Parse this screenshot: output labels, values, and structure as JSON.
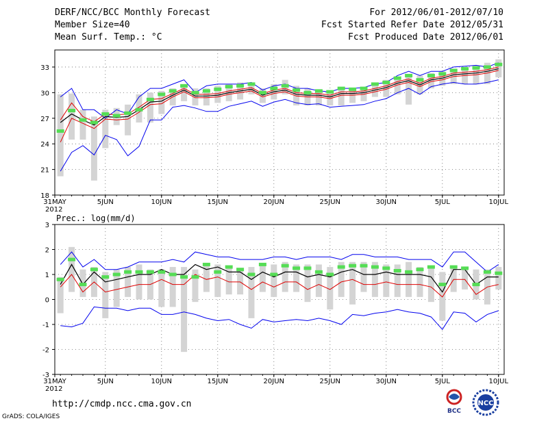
{
  "header": {
    "title": "DERF/NCC/BCC Monthly Forecast",
    "member_size": "Member Size=40",
    "variable": "Mean Surf. Temp.: °C",
    "period": "For 2012/06/01-2012/07/10",
    "start_date": "Fcst Started Refer Date 2012/05/31",
    "produced_date": "Fcst Produced Date 2012/06/01"
  },
  "footer": {
    "url": "http://cmdp.ncc.cma.gov.cn",
    "credit": "GrADS: COLA/IGES",
    "logo_left": "BCC",
    "logo_right": "NCC"
  },
  "colors": {
    "bounds": "#0000ee",
    "mean": "#000000",
    "secondary": "#dd0000",
    "bar": "#d4d4d4",
    "obs": "#55dd55"
  },
  "chart_data": [
    {
      "type": "line",
      "title": "Mean Surf. Temp.: °C",
      "unit": "°C",
      "x_labels": [
        "31MAY",
        "5JUN",
        "10JUN",
        "15JUN",
        "20JUN",
        "25JUN",
        "30JUN",
        "5JUL",
        "10JUL"
      ],
      "x_year": "2012",
      "yticks": [
        "18",
        "21",
        "24",
        "27",
        "30",
        "33"
      ],
      "ylim": [
        18,
        35
      ],
      "x": [
        1,
        2,
        3,
        4,
        5,
        6,
        7,
        8,
        9,
        10,
        11,
        12,
        13,
        14,
        15,
        16,
        17,
        18,
        19,
        20,
        21,
        22,
        23,
        24,
        25,
        26,
        27,
        28,
        29,
        30,
        31,
        32,
        33,
        34,
        35,
        36,
        37,
        38,
        39,
        40
      ],
      "series": [
        {
          "name": "max",
          "values": [
            29.5,
            30.5,
            28,
            28,
            27,
            28,
            27.5,
            29.5,
            30.5,
            30.5,
            31,
            31.5,
            30,
            30.8,
            31,
            31,
            31,
            31.2,
            30.3,
            30.8,
            31,
            30.5,
            30.5,
            30.2,
            30.1,
            30.5,
            30.5,
            30.6,
            31,
            31.2,
            32,
            32.5,
            32,
            32.5,
            32.5,
            33,
            33.1,
            33.2,
            33,
            33.5
          ]
        },
        {
          "name": "ens_upper",
          "values": [
            26.8,
            28.8,
            27.2,
            26.6,
            27.5,
            27.4,
            27.5,
            28.3,
            29.2,
            29.3,
            29.9,
            30.5,
            29.8,
            29.8,
            29.9,
            30.2,
            30.4,
            30.6,
            29.9,
            30.3,
            30.5,
            30.0,
            29.9,
            29.9,
            29.7,
            30.1,
            30.1,
            30.2,
            30.5,
            30.8,
            31.3,
            31.6,
            31.1,
            31.7,
            31.9,
            32.3,
            32.4,
            32.5,
            32.7,
            33.0
          ]
        },
        {
          "name": "ens_mean",
          "values": [
            26.5,
            27.5,
            26.8,
            26.2,
            27.2,
            27.1,
            27.2,
            28.0,
            28.9,
            29.0,
            29.7,
            30.3,
            29.6,
            29.6,
            29.7,
            30.0,
            30.2,
            30.4,
            29.7,
            30.1,
            30.3,
            29.8,
            29.7,
            29.7,
            29.5,
            29.9,
            29.9,
            30.0,
            30.3,
            30.6,
            31.1,
            31.4,
            30.9,
            31.5,
            31.7,
            32.1,
            32.2,
            32.3,
            32.5,
            32.8
          ]
        },
        {
          "name": "ens_lower",
          "values": [
            24.2,
            27.0,
            26.4,
            25.8,
            26.9,
            26.8,
            26.9,
            27.7,
            28.6,
            28.7,
            29.5,
            30.1,
            29.4,
            29.4,
            29.5,
            29.8,
            30.0,
            30.2,
            29.5,
            29.9,
            30.1,
            29.6,
            29.5,
            29.5,
            29.3,
            29.7,
            29.7,
            29.8,
            30.1,
            30.4,
            30.9,
            31.2,
            30.7,
            31.3,
            31.5,
            31.9,
            32.0,
            32.1,
            32.3,
            32.6
          ]
        },
        {
          "name": "min",
          "values": [
            20.8,
            23.0,
            23.8,
            22.7,
            25.0,
            24.5,
            22.6,
            23.7,
            26.8,
            26.8,
            28.3,
            28.5,
            28.2,
            27.8,
            27.8,
            28.4,
            28.7,
            29.0,
            28.4,
            28.9,
            29.2,
            28.8,
            28.6,
            28.7,
            28.3,
            28.4,
            28.5,
            28.6,
            29.0,
            29.3,
            30.0,
            30.5,
            29.8,
            30.7,
            31.0,
            31.2,
            31.0,
            31.0,
            31.2,
            31.5
          ]
        }
      ],
      "bars": [
        {
          "low": 20.2,
          "high": 29.8
        },
        {
          "low": 24.5,
          "high": 29.9
        },
        {
          "low": 24.5,
          "high": 28.0
        },
        {
          "low": 19.7,
          "high": 27.2
        },
        {
          "low": 23.5,
          "high": 28.0
        },
        {
          "low": 26.2,
          "high": 28.2
        },
        {
          "low": 25.0,
          "high": 28.6
        },
        {
          "low": 26.5,
          "high": 29.8
        },
        {
          "low": 26.5,
          "high": 30.0
        },
        {
          "low": 27.5,
          "high": 30.2
        },
        {
          "low": 28.5,
          "high": 30.5
        },
        {
          "low": 29.0,
          "high": 31.0
        },
        {
          "low": 28.5,
          "high": 30.5
        },
        {
          "low": 28.5,
          "high": 30.5
        },
        {
          "low": 28.8,
          "high": 30.8
        },
        {
          "low": 29.0,
          "high": 31.0
        },
        {
          "low": 29.2,
          "high": 31.2
        },
        {
          "low": 29.8,
          "high": 31.2
        },
        {
          "low": 28.8,
          "high": 30.5
        },
        {
          "low": 29.2,
          "high": 31.0
        },
        {
          "low": 29.8,
          "high": 31.5
        },
        {
          "low": 28.5,
          "high": 30.8
        },
        {
          "low": 28.5,
          "high": 30.5
        },
        {
          "low": 28.5,
          "high": 30.3
        },
        {
          "low": 28.5,
          "high": 30.2
        },
        {
          "low": 28.5,
          "high": 30.4
        },
        {
          "low": 28.8,
          "high": 30.5
        },
        {
          "low": 29.0,
          "high": 30.6
        },
        {
          "low": 29.5,
          "high": 31.0
        },
        {
          "low": 29.5,
          "high": 31.5
        },
        {
          "low": 29.8,
          "high": 31.8
        },
        {
          "low": 28.6,
          "high": 32.0
        },
        {
          "low": 29.8,
          "high": 32.0
        },
        {
          "low": 30.5,
          "high": 32.3
        },
        {
          "low": 30.8,
          "high": 32.5
        },
        {
          "low": 31.0,
          "high": 32.8
        },
        {
          "low": 31.0,
          "high": 33.0
        },
        {
          "low": 31.0,
          "high": 33.2
        },
        {
          "low": 31.0,
          "high": 33.5
        },
        {
          "low": 31.8,
          "high": 33.9
        }
      ],
      "markers": [
        25.5,
        27.9,
        26.8,
        26.5,
        27.5,
        27.3,
        27.6,
        28.0,
        29.2,
        29.8,
        30.2,
        30.8,
        30.0,
        30.2,
        30.4,
        30.7,
        30.8,
        31.0,
        30.0,
        30.5,
        30.8,
        30.3,
        30.0,
        30.2,
        30.1,
        30.5,
        30.4,
        30.5,
        31.0,
        31.2,
        31.7,
        32.0,
        31.5,
        32.0,
        32.2,
        32.6,
        32.8,
        32.9,
        33.0,
        33.3
      ]
    },
    {
      "type": "line",
      "title": "Prec.: log(mm/d)",
      "unit": "log(mm/d)",
      "x_labels": [
        "31MAY",
        "5JUN",
        "10JUN",
        "15JUN",
        "20JUN",
        "25JUN",
        "30JUN",
        "5JUL",
        "10JUL"
      ],
      "x_year": "2012",
      "yticks": [
        "-3",
        "-2",
        "-1",
        "0",
        "1",
        "2",
        "3"
      ],
      "ylim": [
        -3,
        3
      ],
      "x": [
        1,
        2,
        3,
        4,
        5,
        6,
        7,
        8,
        9,
        10,
        11,
        12,
        13,
        14,
        15,
        16,
        17,
        18,
        19,
        20,
        21,
        22,
        23,
        24,
        25,
        26,
        27,
        28,
        29,
        30,
        31,
        32,
        33,
        34,
        35,
        36,
        37,
        38,
        39,
        40
      ],
      "series": [
        {
          "name": "max",
          "values": [
            1.4,
            1.9,
            1.3,
            1.6,
            1.2,
            1.2,
            1.3,
            1.5,
            1.5,
            1.5,
            1.6,
            1.5,
            1.9,
            1.8,
            1.7,
            1.7,
            1.6,
            1.6,
            1.6,
            1.7,
            1.7,
            1.6,
            1.7,
            1.7,
            1.7,
            1.6,
            1.8,
            1.8,
            1.7,
            1.7,
            1.7,
            1.6,
            1.6,
            1.6,
            1.3,
            1.9,
            1.9,
            1.5,
            1.1,
            1.4
          ]
        },
        {
          "name": "ens_mean",
          "values": [
            0.6,
            1.4,
            0.6,
            1.1,
            0.7,
            0.8,
            0.9,
            1.0,
            1.0,
            1.2,
            1.0,
            1.0,
            1.4,
            1.2,
            1.3,
            1.1,
            1.1,
            0.8,
            1.1,
            0.9,
            1.1,
            1.1,
            0.9,
            1.0,
            0.9,
            1.1,
            1.2,
            1.0,
            1.0,
            1.1,
            1.0,
            1.0,
            1.0,
            0.9,
            0.3,
            1.2,
            1.2,
            0.6,
            0.9,
            0.9
          ]
        },
        {
          "name": "secondary",
          "values": [
            0.5,
            1.0,
            0.3,
            0.7,
            0.3,
            0.4,
            0.5,
            0.6,
            0.6,
            0.8,
            0.6,
            0.6,
            1.0,
            0.8,
            0.9,
            0.7,
            0.7,
            0.4,
            0.7,
            0.5,
            0.7,
            0.7,
            0.4,
            0.6,
            0.4,
            0.7,
            0.8,
            0.6,
            0.6,
            0.7,
            0.6,
            0.6,
            0.6,
            0.5,
            0.1,
            0.8,
            0.8,
            0.2,
            0.5,
            0.6
          ]
        },
        {
          "name": "min",
          "values": [
            -1.05,
            -1.1,
            -0.95,
            -0.3,
            -0.35,
            -0.35,
            -0.45,
            -0.35,
            -0.35,
            -0.6,
            -0.6,
            -0.5,
            -0.6,
            -0.75,
            -0.85,
            -0.8,
            -1.0,
            -1.15,
            -0.8,
            -0.9,
            -0.85,
            -0.8,
            -0.85,
            -0.75,
            -0.85,
            -1.0,
            -0.6,
            -0.65,
            -0.55,
            -0.5,
            -0.4,
            -0.5,
            -0.55,
            -0.7,
            -1.2,
            -0.5,
            -0.55,
            -0.9,
            -0.6,
            -0.45
          ]
        }
      ],
      "bars": [
        {
          "low": -0.55,
          "high": 0.9
        },
        {
          "low": 0.3,
          "high": 2.1
        },
        {
          "low": 0.1,
          "high": 1.2
        },
        {
          "low": 0.1,
          "high": 1.3
        },
        {
          "low": -0.75,
          "high": 1.1
        },
        {
          "low": -0.3,
          "high": 1.2
        },
        {
          "low": 0.1,
          "high": 1.3
        },
        {
          "low": 0.0,
          "high": 1.4
        },
        {
          "low": 0.0,
          "high": 1.2
        },
        {
          "low": -0.3,
          "high": 1.2
        },
        {
          "low": -0.3,
          "high": 1.3
        },
        {
          "low": -2.1,
          "high": 1.3
        },
        {
          "low": -0.1,
          "high": 1.2
        },
        {
          "low": 0.3,
          "high": 1.4
        },
        {
          "low": 0.1,
          "high": 1.4
        },
        {
          "low": 0.2,
          "high": 1.3
        },
        {
          "low": 0.2,
          "high": 1.2
        },
        {
          "low": -0.75,
          "high": 1.3
        },
        {
          "low": 0.3,
          "high": 1.4
        },
        {
          "low": 0.1,
          "high": 1.4
        },
        {
          "low": 0.3,
          "high": 1.5
        },
        {
          "low": 0.3,
          "high": 1.4
        },
        {
          "low": -0.1,
          "high": 1.4
        },
        {
          "low": 0.1,
          "high": 1.4
        },
        {
          "low": -0.4,
          "high": 1.3
        },
        {
          "low": 0.1,
          "high": 1.5
        },
        {
          "low": -0.2,
          "high": 1.5
        },
        {
          "low": 0.3,
          "high": 1.5
        },
        {
          "low": 0.1,
          "high": 1.5
        },
        {
          "low": 0.1,
          "high": 1.4
        },
        {
          "low": 0.1,
          "high": 1.4
        },
        {
          "low": 0.1,
          "high": 1.5
        },
        {
          "low": 0.1,
          "high": 1.3
        },
        {
          "low": -0.1,
          "high": 1.3
        },
        {
          "low": -0.85,
          "high": 1.1
        },
        {
          "low": 0.3,
          "high": 1.3
        },
        {
          "low": 0.4,
          "high": 1.2
        },
        {
          "low": 0.0,
          "high": 1.2
        },
        {
          "low": -0.2,
          "high": 1.2
        },
        {
          "low": 0.4,
          "high": 1.3
        }
      ],
      "markers": [
        0.8,
        1.6,
        0.6,
        1.2,
        0.9,
        1.0,
        1.1,
        1.1,
        1.1,
        1.1,
        1.0,
        0.9,
        0.9,
        1.4,
        1.1,
        1.3,
        1.2,
        1.0,
        1.4,
        1.0,
        1.35,
        1.25,
        1.25,
        1.1,
        1.0,
        1.3,
        1.35,
        1.35,
        1.3,
        1.25,
        1.15,
        1.1,
        1.2,
        1.3,
        0.6,
        1.3,
        1.25,
        0.6,
        1.1,
        1.05
      ]
    }
  ]
}
